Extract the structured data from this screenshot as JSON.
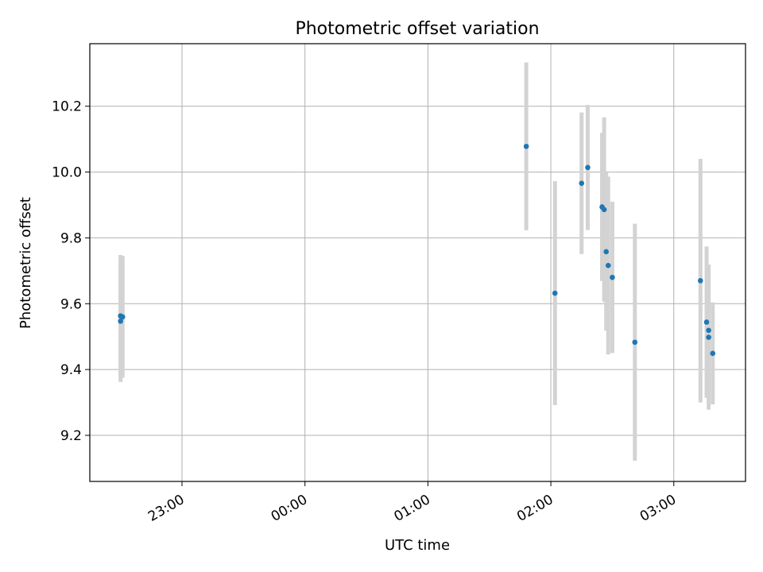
{
  "chart_data": {
    "type": "scatter",
    "title": "Photometric offset variation",
    "xlabel": "UTC time",
    "ylabel": "Photometric offset",
    "x_axis": {
      "type": "time",
      "range": [
        "22:15",
        "03:35"
      ],
      "ticks": [
        "23:00",
        "00:00",
        "01:00",
        "02:00",
        "03:00"
      ]
    },
    "y_axis": {
      "range": [
        9.06,
        10.39
      ],
      "ticks": [
        "9.2",
        "9.4",
        "9.6",
        "9.8",
        "10.0",
        "10.2"
      ]
    },
    "grid": true,
    "colors": {
      "point": "#1f77b4",
      "errorbar": "#d3d3d3"
    },
    "points": [
      {
        "x": "22:30",
        "y": 9.563,
        "err": 0.185
      },
      {
        "x": "22:31",
        "y": 9.56,
        "err": 0.185
      },
      {
        "x": "22:30",
        "y": 9.547,
        "err": 0.185
      },
      {
        "x": "01:48",
        "y": 10.078,
        "err": 0.255
      },
      {
        "x": "02:02",
        "y": 9.632,
        "err": 0.34
      },
      {
        "x": "02:15",
        "y": 9.966,
        "err": 0.215
      },
      {
        "x": "02:18",
        "y": 10.014,
        "err": 0.19
      },
      {
        "x": "02:25",
        "y": 9.894,
        "err": 0.225
      },
      {
        "x": "02:26",
        "y": 9.886,
        "err": 0.28
      },
      {
        "x": "02:27",
        "y": 9.758,
        "err": 0.24
      },
      {
        "x": "02:28",
        "y": 9.716,
        "err": 0.27
      },
      {
        "x": "02:30",
        "y": 9.68,
        "err": 0.23
      },
      {
        "x": "02:41",
        "y": 9.483,
        "err": 0.36
      },
      {
        "x": "03:13",
        "y": 9.67,
        "err": 0.37
      },
      {
        "x": "03:16",
        "y": 9.544,
        "err": 0.23
      },
      {
        "x": "03:17",
        "y": 9.519,
        "err": 0.2
      },
      {
        "x": "03:17",
        "y": 9.498,
        "err": 0.22
      },
      {
        "x": "03:19",
        "y": 9.449,
        "err": 0.155
      }
    ]
  }
}
